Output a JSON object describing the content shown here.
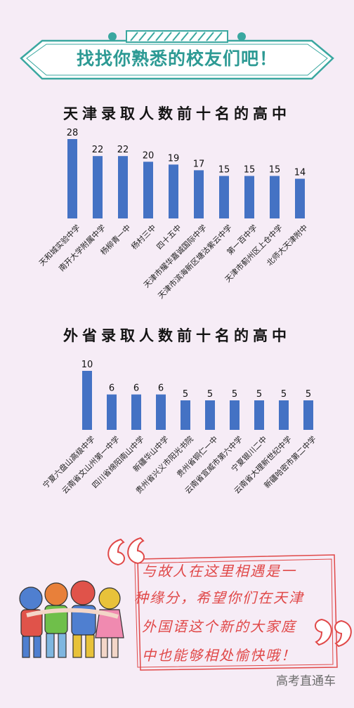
{
  "banner": {
    "title": "找找你熟悉的校友们吧！"
  },
  "chart_data": [
    {
      "type": "bar",
      "title": "天津录取人数前十名的高中",
      "categories": [
        "天和城实验中学",
        "南开大学附属中学",
        "杨柳青一中",
        "杨村三中",
        "四十五中",
        "天津市耀华嘉诚国际中学",
        "天津市滨海新区塘沽紫云中学",
        "第一百中学",
        "天津市蓟州区上仓中学",
        "北师大天津附中"
      ],
      "values": [
        28,
        22,
        22,
        20,
        19,
        17,
        15,
        15,
        15,
        14
      ],
      "ylim": [
        0,
        28
      ],
      "bar_color": "#4472c4",
      "grid": false,
      "legend": "none"
    },
    {
      "type": "bar",
      "title": "外省录取人数前十名的高中",
      "categories": [
        "宁夏六盘山高级中学",
        "云南省文山州第一中学",
        "四川省绵阳南山中学",
        "新疆华山中学",
        "贵州省兴义市阳光书院",
        "贵州省铜仁一中",
        "云南省宣威市第六中学",
        "宁夏银川二中",
        "云南省大理新世纪中学",
        "新疆哈密市第二中学"
      ],
      "values": [
        10,
        6,
        6,
        6,
        5,
        5,
        5,
        5,
        5,
        5
      ],
      "ylim": [
        0,
        10
      ],
      "bar_color": "#4472c4",
      "grid": false,
      "legend": "none"
    }
  ],
  "quote": {
    "lines": [
      "与故人在这里相遇是一",
      "种缘分，希望你们在天津",
      "外国语这个新的大家庭",
      "中也能够相处愉快哦！"
    ],
    "color": "#e04848"
  },
  "watermark": "高考直通车",
  "colors": {
    "accent": "#2d9a94",
    "banner_border": "#3aa7a0"
  }
}
